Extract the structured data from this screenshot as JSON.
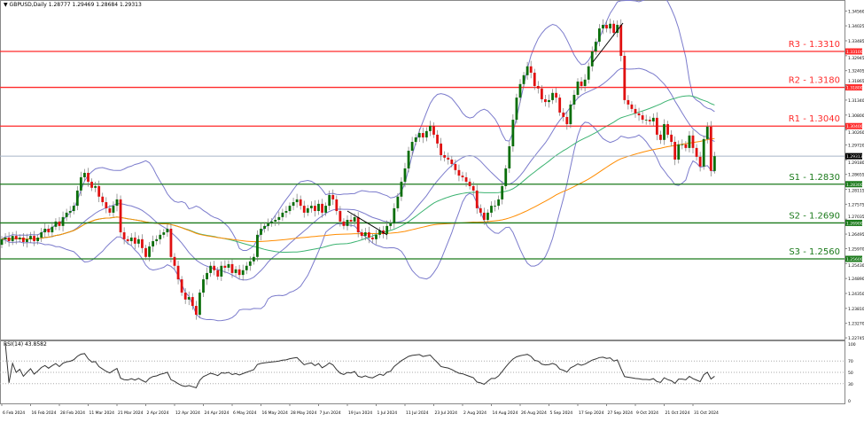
{
  "header": {
    "symbol": "GBPUSD,Daily",
    "open": "1.28777",
    "high": "1.29469",
    "low": "1.28684",
    "close": "1.29313"
  },
  "rsi_header": "RSI(14) 43.8582",
  "colors": {
    "bull": "#0a6e0a",
    "bear": "#e01010",
    "bollinger": "#7b7bcc",
    "ma_fast": "#3cb371",
    "ma_slow": "#ff8c00",
    "resistance": "#ff2a2a",
    "support": "#1b7a1b",
    "price_line": "#a8b4c8"
  },
  "chart_data": {
    "type": "candlestick",
    "symbol": "GBPUSD",
    "timeframe": "Daily",
    "ylim": [
      1.22745,
      1.3456
    ],
    "y_ticks": [
      "1.34560",
      "1.34025",
      "1.33485",
      "1.32945",
      "1.32405",
      "1.31865",
      "1.31340",
      "1.30800",
      "1.30260",
      "1.29720",
      "1.29180",
      "1.28655",
      "1.28115",
      "1.27575",
      "1.27035",
      "1.26495",
      "1.25970",
      "1.25430",
      "1.24890",
      "1.24350",
      "1.23810",
      "1.23270",
      "1.22745"
    ],
    "x_labels": [
      "6 Feb 2024",
      "16 Feb 2024",
      "28 Feb 2024",
      "11 Mar 2024",
      "21 Mar 2024",
      "2 Apr 2024",
      "12 Apr 2024",
      "24 Apr 2024",
      "6 May 2024",
      "16 May 2024",
      "28 May 2024",
      "7 Jun 2024",
      "19 Jun 2024",
      "1 Jul 2024",
      "11 Jul 2024",
      "23 Jul 2024",
      "2 Aug 2024",
      "14 Aug 2024",
      "26 Aug 2024",
      "5 Sep 2024",
      "17 Sep 2024",
      "27 Sep 2024",
      "9 Oct 2024",
      "21 Oct 2024",
      "31 Oct 2024"
    ],
    "closes": [
      1.2631,
      1.2637,
      1.2624,
      1.2643,
      1.2631,
      1.2637,
      1.2621,
      1.2631,
      1.2643,
      1.2624,
      1.2637,
      1.2656,
      1.2669,
      1.2656,
      1.2676,
      1.2695,
      1.2679,
      1.2711,
      1.2727,
      1.2733,
      1.2752,
      1.2807,
      1.2855,
      1.2871,
      1.2839,
      1.2817,
      1.2823,
      1.2785,
      1.2765,
      1.2743,
      1.2727,
      1.2752,
      1.2775,
      1.2656,
      1.2631,
      1.2624,
      1.2637,
      1.2615,
      1.2631,
      1.2599,
      1.2567,
      1.2605,
      1.2624,
      1.2631,
      1.2647,
      1.2656,
      1.2669,
      1.2567,
      1.2535,
      1.2486,
      1.2438,
      1.2413,
      1.2422,
      1.239,
      1.2358,
      1.2438,
      1.2486,
      1.2509,
      1.2535,
      1.2519,
      1.2496,
      1.2535,
      1.2528,
      1.2541,
      1.2509,
      1.2522,
      1.2502,
      1.2519,
      1.2535,
      1.2551,
      1.2567,
      1.2647,
      1.2669,
      1.2679,
      1.2688,
      1.2695,
      1.2701,
      1.2711,
      1.2727,
      1.2733,
      1.2752,
      1.2765,
      1.2775,
      1.2752,
      1.2727,
      1.2743,
      1.2752,
      1.2733,
      1.2759,
      1.2727,
      1.2752,
      1.2791,
      1.2775,
      1.2733,
      1.2695,
      1.2679,
      1.2701,
      1.2695,
      1.2711,
      1.2656,
      1.2643,
      1.2656,
      1.2637,
      1.2631,
      1.2647,
      1.2663,
      1.265,
      1.2679,
      1.2688,
      1.2743,
      1.2785,
      1.2839,
      1.2887,
      1.2951,
      1.2983,
      1.2999,
      1.3015,
      1.2999,
      1.3022,
      1.3041,
      1.3009,
      1.2977,
      1.2935,
      1.2926,
      1.2919,
      1.2903,
      1.2881,
      1.2861,
      1.2855,
      1.2839,
      1.2823,
      1.2807,
      1.2743,
      1.2727,
      1.2701,
      1.2727,
      1.2752,
      1.2752,
      1.2775,
      1.2823,
      1.2887,
      1.2967,
      1.3063,
      1.3143,
      1.3192,
      1.3224,
      1.3256,
      1.3233,
      1.3185,
      1.3176,
      1.3137,
      1.3127,
      1.3134,
      1.316,
      1.3143,
      1.3089,
      1.3073,
      1.3047,
      1.3118,
      1.3153,
      1.3201,
      1.3185,
      1.3208,
      1.3256,
      1.331,
      1.3345,
      1.3393,
      1.3406,
      1.3393,
      1.341,
      1.3377,
      1.3406,
      1.3294,
      1.3134,
      1.3118,
      1.3102,
      1.3086,
      1.3079,
      1.3063,
      1.3063,
      1.3057,
      1.307,
      1.3009,
      1.299,
      1.3047,
      1.3009,
      1.2983,
      1.2919,
      1.2974,
      1.2974,
      1.2961,
      1.3006,
      1.2961,
      1.2929,
      1.2894,
      1.2993,
      1.3038,
      1.2878,
      1.29313
    ],
    "last_candle": {
      "open": 1.28777,
      "high": 1.29469,
      "low": 1.28684,
      "close": 1.29313
    },
    "indicators": [
      "Bollinger Bands (20,2)",
      "Moving average (green)",
      "Moving average (orange)"
    ],
    "levels": [
      {
        "label": "R3 - 1.3310",
        "value": 1.331,
        "tag": "1.33100",
        "kind": "resistance"
      },
      {
        "label": "R2 - 1.3180",
        "value": 1.318,
        "tag": "1.31800",
        "kind": "resistance"
      },
      {
        "label": "R1 - 1.3040",
        "value": 1.304,
        "tag": "1.30400",
        "kind": "resistance"
      },
      {
        "label": "S1 - 1.2830",
        "value": 1.283,
        "tag": "1.28300",
        "kind": "support"
      },
      {
        "label": "S2 - 1.2690",
        "value": 1.269,
        "tag": "1.26900",
        "kind": "support"
      },
      {
        "label": "S3 - 1.2560",
        "value": 1.256,
        "tag": "1.25600",
        "kind": "support"
      }
    ],
    "current_price_tag": "1.29313",
    "rsi": {
      "period": 14,
      "value": 43.8582,
      "ylim": [
        0,
        100
      ],
      "levels": [
        70,
        50,
        30
      ],
      "y_ticks": [
        "100",
        "70",
        "50",
        "30",
        "0"
      ]
    }
  }
}
